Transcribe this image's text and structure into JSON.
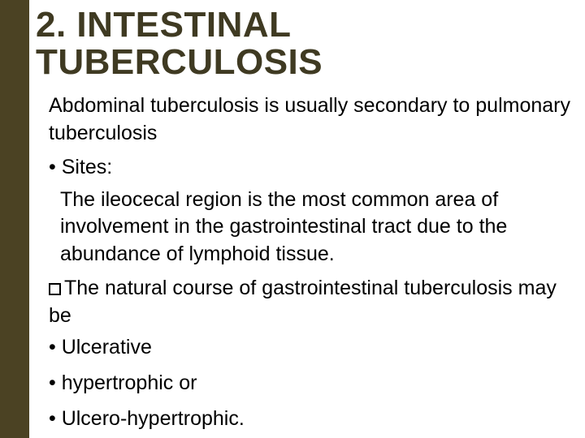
{
  "accent_color": "#4b4223",
  "title_color": "#3f3a22",
  "title": "2. INTESTINAL TUBERCULOSIS",
  "intro": "Abdominal tuberculosis is usually secondary to pulmonary tuberculosis",
  "sites_label": "• Sites:",
  "sites_body": "The ileocecal region is the most common area of involvement in the gastrointestinal tract due to the abundance of lymphoid tissue.",
  "course_intro": "The natural course of gastrointestinal tuberculosis may be",
  "items": {
    "a": "• Ulcerative",
    "b": "• hypertrophic or",
    "c": "• Ulcero-hypertrophic."
  }
}
